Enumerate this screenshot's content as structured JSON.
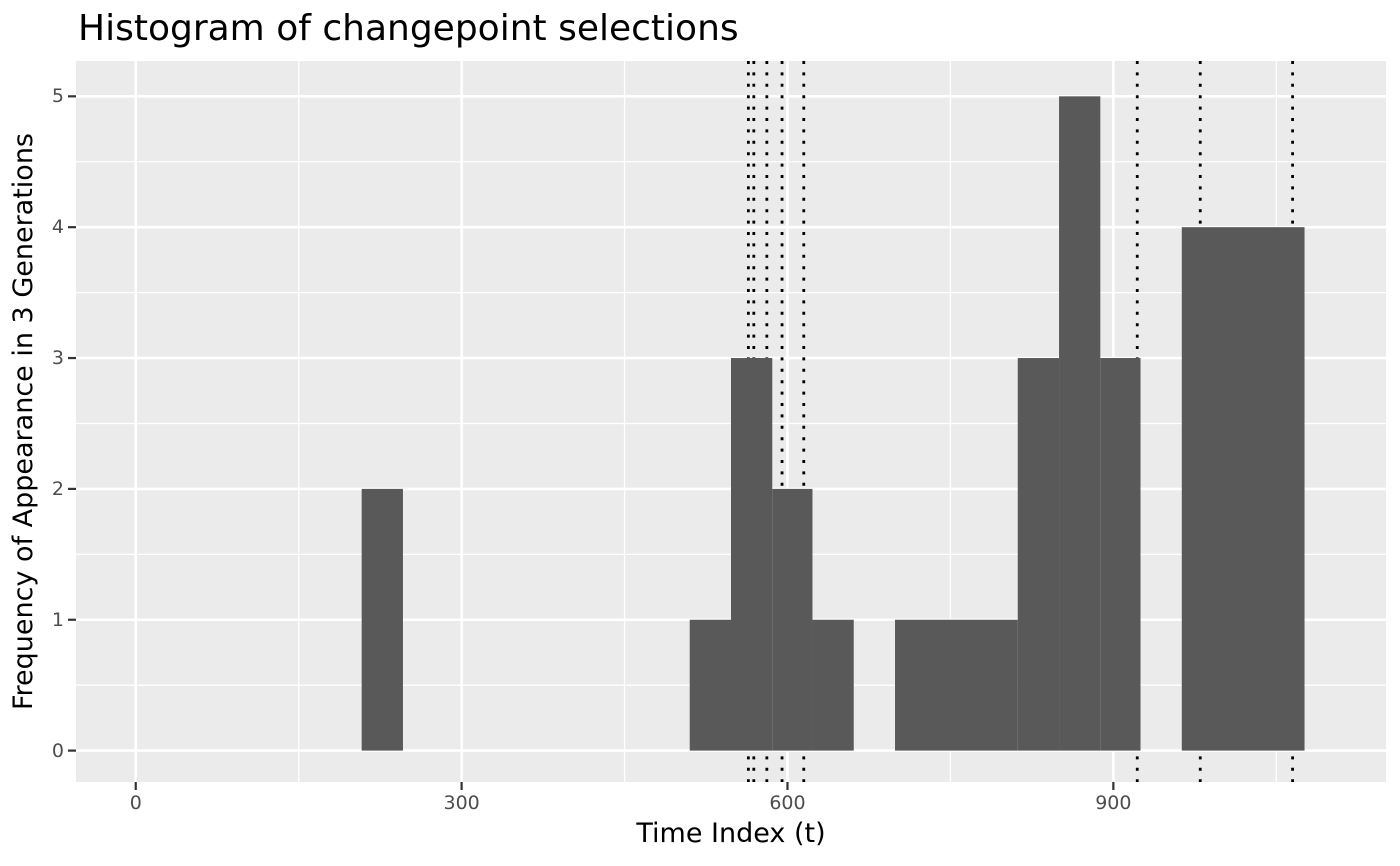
{
  "chart_data": {
    "type": "bar",
    "subtype": "histogram",
    "title": "Histogram of changepoint selections",
    "xlabel": "Time Index (t)",
    "ylabel": "Frequency of Appearance in 3 Generations",
    "grid": true,
    "legend": false,
    "xlim": [
      -55,
      1151
    ],
    "ylim": [
      -0.24,
      5.27
    ],
    "x_major_ticks": [
      0,
      300,
      600,
      900
    ],
    "x_minor_ticks": [
      150,
      450,
      750,
      1050
    ],
    "y_major_ticks": [
      0,
      1,
      2,
      3,
      4,
      5
    ],
    "y_minor_ticks": [
      0.5,
      1.5,
      2.5,
      3.5,
      4.5
    ],
    "bin_width": 37.7,
    "bars": [
      {
        "x0": 208,
        "x1": 246,
        "count": 2
      },
      {
        "x0": 510,
        "x1": 548,
        "count": 1
      },
      {
        "x0": 548,
        "x1": 586,
        "count": 3
      },
      {
        "x0": 586,
        "x1": 623,
        "count": 2
      },
      {
        "x0": 623,
        "x1": 661,
        "count": 1
      },
      {
        "x0": 699,
        "x1": 812,
        "count": 1
      },
      {
        "x0": 812,
        "x1": 850,
        "count": 3
      },
      {
        "x0": 850,
        "x1": 888,
        "count": 5
      },
      {
        "x0": 888,
        "x1": 925,
        "count": 3
      },
      {
        "x0": 963,
        "x1": 1076,
        "count": 4
      }
    ],
    "changepoint_vlines": [
      564,
      569,
      581,
      595,
      615,
      922,
      980,
      1065
    ],
    "colors": {
      "bar_fill": "#595959",
      "panel_bg": "#EBEBEB",
      "grid_line": "#FFFFFF",
      "vline": "#000000",
      "tick_label": "#4D4D4D",
      "tick_mark": "#333333",
      "text": "#000000"
    }
  }
}
